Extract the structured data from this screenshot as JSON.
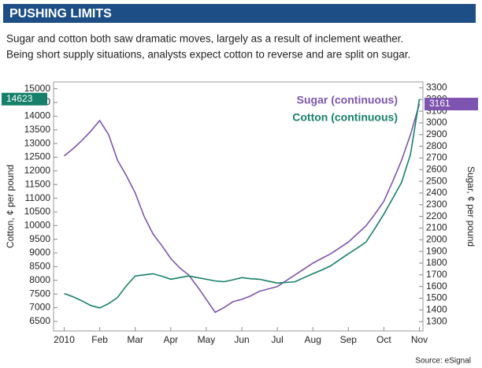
{
  "chart_data": {
    "type": "line",
    "title": "PUSHING LIMITS",
    "subtitle": [
      "Sugar and cotton both saw dramatic moves, largely as a result of inclement weather.",
      "Being short supply situations, analysts expect cotton to reverse and are split on sugar."
    ],
    "ylabel": "Cotton, ¢ per pound",
    "y2label": "Sugar, ¢ per pound",
    "source": "Source: eSignal",
    "grid": false,
    "xlim": [
      -0.3,
      10.1
    ],
    "xticks": [
      {
        "value": 0,
        "label": "2010"
      },
      {
        "value": 1,
        "label": "Feb"
      },
      {
        "value": 2,
        "label": "Mar"
      },
      {
        "value": 3,
        "label": "Apr"
      },
      {
        "value": 4,
        "label": "May"
      },
      {
        "value": 5,
        "label": "Jun"
      },
      {
        "value": 6,
        "label": "Jul"
      },
      {
        "value": 7,
        "label": "Aug"
      },
      {
        "value": 8,
        "label": "Sep"
      },
      {
        "value": 9,
        "label": "Oct"
      },
      {
        "value": 10,
        "label": "Nov"
      }
    ],
    "ylim": [
      6150,
      15250
    ],
    "yticks": [
      6500,
      7000,
      7500,
      8000,
      8500,
      9000,
      9500,
      10000,
      10500,
      11000,
      11500,
      12000,
      12500,
      13000,
      13500,
      14000,
      14500,
      15000
    ],
    "y2lim": [
      1220,
      3350
    ],
    "y2ticks": [
      1300,
      1400,
      1500,
      1600,
      1700,
      1800,
      1900,
      2000,
      2100,
      2200,
      2300,
      2400,
      2500,
      2600,
      2700,
      2800,
      2900,
      3000,
      3100,
      3200,
      3300
    ],
    "x": [
      0,
      0.25,
      0.5,
      0.75,
      1,
      1.25,
      1.5,
      1.75,
      2,
      2.25,
      2.5,
      2.75,
      3,
      3.25,
      3.5,
      3.75,
      4,
      4.25,
      4.5,
      4.75,
      5,
      5.25,
      5.5,
      5.75,
      6,
      6.25,
      6.5,
      6.75,
      7,
      7.25,
      7.5,
      7.75,
      8,
      8.25,
      8.5,
      8.75,
      9,
      9.25,
      9.5,
      9.75,
      10
    ],
    "series": [
      {
        "name": "Sugar (continuous)",
        "color": "#7d55b0",
        "axis": "y2",
        "values": [
          2717,
          2780,
          2850,
          2930,
          3020,
          2900,
          2680,
          2550,
          2400,
          2200,
          2050,
          1950,
          1840,
          1760,
          1700,
          1600,
          1490,
          1380,
          1420,
          1470,
          1490,
          1520,
          1560,
          1580,
          1600,
          1650,
          1700,
          1750,
          1800,
          1840,
          1880,
          1930,
          1980,
          2050,
          2120,
          2220,
          2330,
          2500,
          2680,
          2900,
          3161
        ]
      },
      {
        "name": "Cotton (continuous)",
        "color": "#16806a",
        "values": [
          7517,
          7400,
          7250,
          7080,
          6990,
          7150,
          7370,
          7800,
          8160,
          8200,
          8240,
          8150,
          8040,
          8100,
          8160,
          8100,
          8040,
          7980,
          7950,
          8020,
          8100,
          8060,
          8040,
          7970,
          7900,
          7920,
          7950,
          8100,
          8240,
          8380,
          8530,
          8750,
          8970,
          9180,
          9400,
          9900,
          10420,
          11000,
          11580,
          12600,
          14623
        ]
      }
    ]
  }
}
